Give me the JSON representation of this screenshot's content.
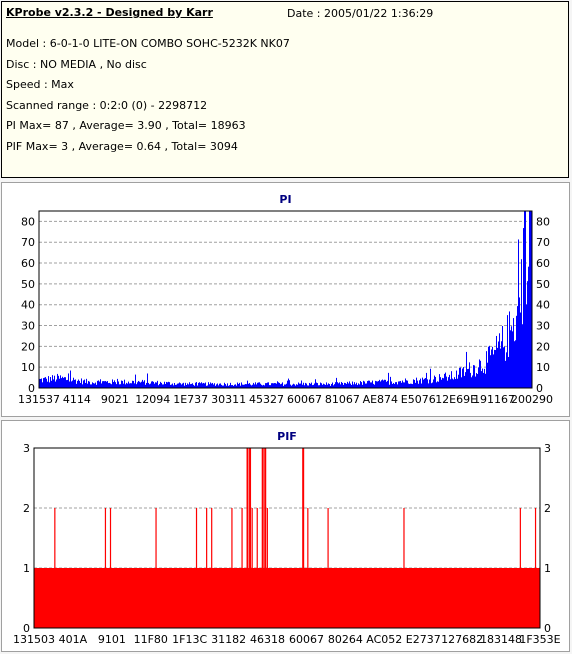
{
  "info": {
    "title": "KProbe v2.3.2 - Designed by Karr",
    "date": "Date : 2005/01/22 1:36:29",
    "lines": [
      "Model : 6-0-1-0 LITE-ON COMBO SOHC-5232K NK07",
      "Disc : NO MEDIA , No disc",
      "Speed : Max",
      "Scanned range : 0:2:0 (0) - 2298712",
      "PI Max= 87 , Average= 3.90 , Total= 18963",
      "PIF Max= 3 , Average= 0.64 , Total= 3094"
    ]
  },
  "colors": {
    "pi": "#0000ff",
    "pif": "#ff0000",
    "title": "#000080",
    "grid": "#a0a0a0"
  },
  "chart_data": [
    {
      "type": "bar",
      "title": "PI",
      "ylim": [
        0,
        85
      ],
      "yticks": [
        0,
        10,
        20,
        30,
        40,
        50,
        60,
        70,
        80
      ],
      "xticks": [
        "131537",
        "4114",
        "9021",
        "12094",
        "1E737",
        "30311",
        "45327",
        "60067",
        "81067",
        "AE874",
        "E5076",
        "12E69E",
        "191167",
        "200290"
      ],
      "grid": true,
      "max": 87,
      "average": 3.9,
      "series_profile": [
        [
          0,
          4
        ],
        [
          0.04,
          5
        ],
        [
          0.1,
          3
        ],
        [
          0.2,
          3
        ],
        [
          0.3,
          2
        ],
        [
          0.4,
          2
        ],
        [
          0.5,
          2
        ],
        [
          0.6,
          2
        ],
        [
          0.7,
          3
        ],
        [
          0.78,
          4
        ],
        [
          0.84,
          6
        ],
        [
          0.88,
          10
        ],
        [
          0.91,
          14
        ],
        [
          0.94,
          22
        ],
        [
          0.96,
          30
        ],
        [
          0.98,
          45
        ],
        [
          1.0,
          60
        ]
      ]
    },
    {
      "type": "bar",
      "title": "PIF",
      "ylim": [
        0,
        3
      ],
      "yticks": [
        0,
        1,
        2,
        3
      ],
      "xticks": [
        "131503",
        "401A",
        "9101",
        "11F80",
        "1F13C",
        "31182",
        "46318",
        "60067",
        "80264",
        "AC052",
        "E2737",
        "127682",
        "183148",
        "1F353E"
      ],
      "grid": true,
      "max": 3,
      "average": 0.64,
      "base_level": 1,
      "spikes_level_2": [
        0.04,
        0.14,
        0.15,
        0.24,
        0.32,
        0.34,
        0.35,
        0.39,
        0.41,
        0.43,
        0.44,
        0.46,
        0.54,
        0.58,
        0.73,
        0.96,
        0.99
      ],
      "spikes_level_3": [
        0.42,
        0.425,
        0.45,
        0.455,
        0.53
      ]
    }
  ]
}
